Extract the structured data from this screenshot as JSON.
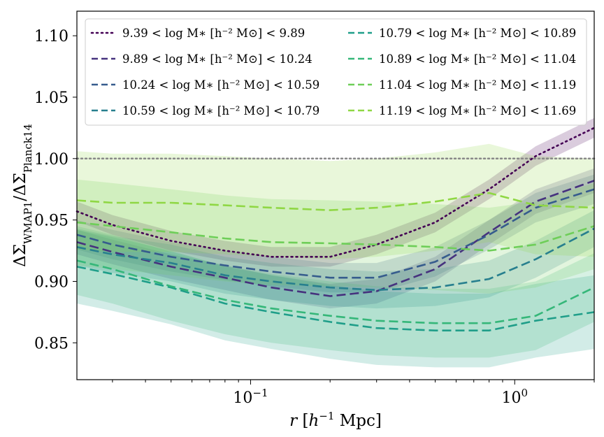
{
  "chart_data": {
    "type": "line",
    "xscale": "log",
    "xlabel": "r [h⁻¹ Mpc]",
    "ylabel": "ΔΣ_WMAP1 / ΔΣ_Planck14",
    "xlim": [
      0.022,
      2.0
    ],
    "ylim": [
      0.82,
      1.12
    ],
    "grid": false,
    "legend_position": "top",
    "reference_line": {
      "y": 1.0,
      "style": "dotted",
      "color": "#888888"
    },
    "x_ticks": [
      {
        "value": 0.1,
        "base": "10",
        "exp": "−1"
      },
      {
        "value": 1.0,
        "base": "10",
        "exp": "0"
      }
    ],
    "y_ticks": [
      {
        "value": 0.85,
        "label": "0.85"
      },
      {
        "value": 0.9,
        "label": "0.90"
      },
      {
        "value": 0.95,
        "label": "0.95"
      },
      {
        "value": 1.0,
        "label": "1.00"
      },
      {
        "value": 1.05,
        "label": "1.05"
      },
      {
        "value": 1.1,
        "label": "1.10"
      }
    ],
    "series": [
      {
        "name": "9.39 < log M∗ [h⁻² M⊙] < 9.89",
        "color": "#440154",
        "dash": "dotted",
        "band": 0.008,
        "x": [
          0.022,
          0.03,
          0.05,
          0.08,
          0.12,
          0.2,
          0.3,
          0.5,
          0.8,
          1.2,
          2.0
        ],
        "y": [
          0.957,
          0.946,
          0.933,
          0.925,
          0.92,
          0.92,
          0.93,
          0.948,
          0.975,
          1.002,
          1.025
        ]
      },
      {
        "name": "9.89 < log M∗ [h⁻² M⊙] < 10.24",
        "color": "#46327e",
        "dash": "dashed",
        "band": 0.01,
        "x": [
          0.022,
          0.03,
          0.05,
          0.08,
          0.12,
          0.2,
          0.3,
          0.5,
          0.8,
          1.2,
          2.0
        ],
        "y": [
          0.932,
          0.924,
          0.912,
          0.903,
          0.895,
          0.888,
          0.892,
          0.91,
          0.94,
          0.965,
          0.982
        ]
      },
      {
        "name": "10.24 < log M∗ [h⁻² M⊙] < 10.59",
        "color": "#365c8d",
        "dash": "dashed",
        "band": 0.012,
        "x": [
          0.022,
          0.03,
          0.05,
          0.08,
          0.12,
          0.2,
          0.3,
          0.5,
          0.8,
          1.2,
          2.0
        ],
        "y": [
          0.938,
          0.93,
          0.92,
          0.913,
          0.908,
          0.903,
          0.903,
          0.916,
          0.938,
          0.96,
          0.975
        ]
      },
      {
        "name": "10.59 < log M∗ [h⁻² M⊙] < 10.79",
        "color": "#277f8e",
        "dash": "dashed",
        "band": 0.015,
        "x": [
          0.022,
          0.03,
          0.05,
          0.08,
          0.12,
          0.2,
          0.3,
          0.5,
          0.8,
          1.2,
          2.0
        ],
        "y": [
          0.928,
          0.922,
          0.915,
          0.905,
          0.9,
          0.895,
          0.893,
          0.895,
          0.902,
          0.918,
          0.943
        ]
      },
      {
        "name": "10.79 < log M∗ [h⁻² M⊙] < 10.89",
        "color": "#1f9e89",
        "dash": "dashed",
        "band": 0.03,
        "x": [
          0.022,
          0.03,
          0.05,
          0.08,
          0.12,
          0.2,
          0.3,
          0.5,
          0.8,
          1.2,
          2.0
        ],
        "y": [
          0.912,
          0.906,
          0.895,
          0.882,
          0.875,
          0.867,
          0.862,
          0.86,
          0.86,
          0.868,
          0.875
        ]
      },
      {
        "name": "10.89 < log M∗ [h⁻² M⊙] < 11.04",
        "color": "#35b779",
        "dash": "dashed",
        "band": 0.028,
        "x": [
          0.022,
          0.03,
          0.05,
          0.08,
          0.12,
          0.2,
          0.3,
          0.5,
          0.8,
          1.2,
          2.0
        ],
        "y": [
          0.917,
          0.91,
          0.896,
          0.885,
          0.878,
          0.872,
          0.868,
          0.866,
          0.866,
          0.872,
          0.895
        ]
      },
      {
        "name": "11.04 < log M∗ [h⁻² M⊙] < 11.19",
        "color": "#6ece58",
        "dash": "dashed",
        "band": 0.035,
        "x": [
          0.022,
          0.03,
          0.05,
          0.08,
          0.12,
          0.2,
          0.3,
          0.5,
          0.8,
          1.2,
          2.0
        ],
        "y": [
          0.948,
          0.945,
          0.94,
          0.935,
          0.932,
          0.931,
          0.93,
          0.928,
          0.925,
          0.93,
          0.945
        ]
      },
      {
        "name": "11.19 < log M∗ [h⁻² M⊙] < 11.69",
        "color": "#8fd744",
        "dash": "dashed",
        "band": 0.04,
        "x": [
          0.022,
          0.03,
          0.05,
          0.08,
          0.12,
          0.2,
          0.3,
          0.5,
          0.8,
          1.2,
          2.0
        ],
        "y": [
          0.966,
          0.964,
          0.964,
          0.962,
          0.96,
          0.958,
          0.96,
          0.965,
          0.972,
          0.962,
          0.96
        ]
      }
    ]
  }
}
